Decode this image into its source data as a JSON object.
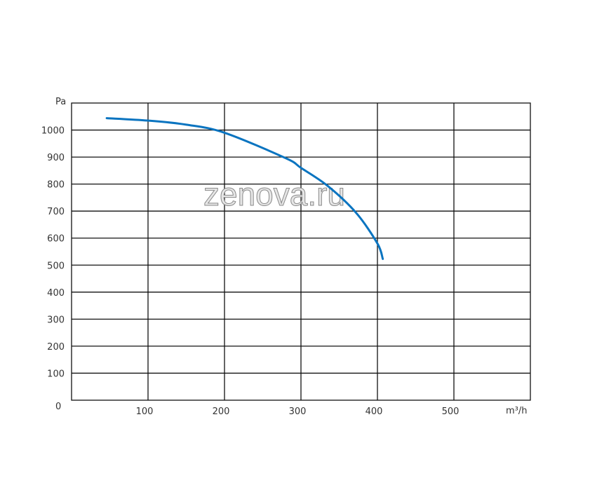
{
  "chart_data": {
    "type": "line",
    "title": "",
    "xlabel": "m³/h",
    "ylabel": "Pa",
    "xlim": [
      0,
      600
    ],
    "ylim": [
      0,
      1100
    ],
    "xticks": [
      100,
      200,
      300,
      400,
      500
    ],
    "yticks": [
      100,
      200,
      300,
      400,
      500,
      600,
      700,
      800,
      900,
      1000
    ],
    "origin_label": "0",
    "grid": true,
    "series": [
      {
        "color": "#0a74c0",
        "x": [
          46,
          100,
          150,
          200,
          280,
          300,
          335,
          372,
          400,
          407
        ],
        "y": [
          1044,
          1035,
          1020,
          990,
          896,
          860,
          793,
          694,
          580,
          523
        ]
      }
    ]
  },
  "watermark": "zenova.ru"
}
